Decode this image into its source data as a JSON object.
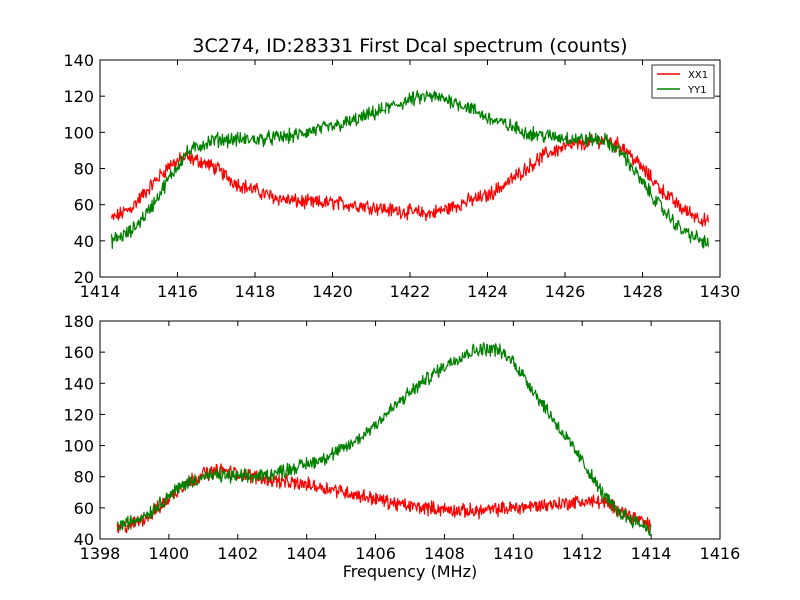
{
  "chart_data": [
    {
      "type": "line",
      "title": "3C274, ID:28331 First Dcal spectrum (counts)",
      "xlabel": "",
      "ylabel": "",
      "xlim": [
        1414,
        1430
      ],
      "ylim": [
        20,
        140
      ],
      "xticks": [
        "1414",
        "1416",
        "1418",
        "1420",
        "1422",
        "1424",
        "1426",
        "1428",
        "1430"
      ],
      "yticks": [
        "20",
        "40",
        "60",
        "80",
        "100",
        "120",
        "140"
      ],
      "legend": {
        "placement": "top-right",
        "entries": [
          "XX1",
          "YY1"
        ]
      },
      "grid": false,
      "series": [
        {
          "name": "XX1",
          "color": "#ff0000",
          "x": [
            1414.3,
            1414.8,
            1415.3,
            1415.8,
            1416.2,
            1416.6,
            1417.0,
            1417.5,
            1418.0,
            1418.5,
            1419.0,
            1419.5,
            1420.0,
            1420.5,
            1421.0,
            1421.5,
            1422.0,
            1422.5,
            1423.0,
            1423.5,
            1424.0,
            1424.5,
            1425.0,
            1425.5,
            1426.0,
            1426.5,
            1427.0,
            1427.5,
            1428.0,
            1428.5,
            1429.0,
            1429.7
          ],
          "values": [
            52,
            58,
            70,
            82,
            86,
            84,
            80,
            72,
            68,
            64,
            62,
            61,
            61,
            60,
            59,
            57,
            56,
            55,
            58,
            62,
            65,
            72,
            80,
            88,
            92,
            94,
            96,
            92,
            80,
            68,
            58,
            50
          ]
        },
        {
          "name": "YY1",
          "color": "#008000",
          "x": [
            1414.3,
            1414.8,
            1415.3,
            1415.8,
            1416.2,
            1416.6,
            1417.0,
            1417.5,
            1418.0,
            1418.5,
            1419.0,
            1419.5,
            1420.0,
            1420.5,
            1421.0,
            1421.5,
            1422.0,
            1422.5,
            1423.0,
            1423.5,
            1424.0,
            1424.5,
            1425.0,
            1425.5,
            1426.0,
            1426.5,
            1427.0,
            1427.5,
            1428.0,
            1428.5,
            1429.0,
            1429.7
          ],
          "values": [
            40,
            45,
            58,
            75,
            88,
            93,
            96,
            96,
            96,
            97,
            98,
            101,
            103,
            106,
            110,
            114,
            118,
            120,
            118,
            114,
            108,
            104,
            100,
            98,
            97,
            96,
            96,
            88,
            72,
            58,
            46,
            38
          ]
        }
      ]
    },
    {
      "type": "line",
      "title": "",
      "xlabel": "Frequency (MHz)",
      "ylabel": "",
      "xlim": [
        1398,
        1416
      ],
      "ylim": [
        40,
        180
      ],
      "xticks": [
        "1398",
        "1400",
        "1402",
        "1404",
        "1406",
        "1408",
        "1410",
        "1412",
        "1414",
        "1416"
      ],
      "yticks": [
        "40",
        "60",
        "80",
        "100",
        "120",
        "140",
        "160",
        "180"
      ],
      "grid": false,
      "series": [
        {
          "name": "XX1",
          "color": "#ff0000",
          "x": [
            1398.5,
            1399.0,
            1399.5,
            1400.0,
            1400.5,
            1401.0,
            1401.5,
            1402.0,
            1402.5,
            1403.0,
            1403.5,
            1404.0,
            1404.5,
            1405.0,
            1405.5,
            1406.0,
            1406.5,
            1407.0,
            1407.5,
            1408.0,
            1408.5,
            1409.0,
            1409.5,
            1410.0,
            1410.5,
            1411.0,
            1411.5,
            1412.0,
            1412.5,
            1413.0,
            1413.5,
            1414.0
          ],
          "values": [
            46,
            50,
            56,
            66,
            76,
            82,
            84,
            82,
            80,
            78,
            76,
            75,
            73,
            71,
            68,
            66,
            63,
            61,
            60,
            59,
            58,
            58,
            59,
            60,
            61,
            62,
            63,
            64,
            64,
            60,
            54,
            48
          ]
        },
        {
          "name": "YY1",
          "color": "#008000",
          "x": [
            1398.5,
            1399.0,
            1399.5,
            1400.0,
            1400.5,
            1401.0,
            1401.5,
            1402.0,
            1402.5,
            1403.0,
            1403.5,
            1404.0,
            1404.5,
            1405.0,
            1405.5,
            1406.0,
            1406.5,
            1407.0,
            1407.5,
            1408.0,
            1408.5,
            1409.0,
            1409.5,
            1410.0,
            1410.5,
            1411.0,
            1411.5,
            1412.0,
            1412.5,
            1413.0,
            1413.5,
            1414.0
          ],
          "values": [
            48,
            52,
            58,
            68,
            76,
            80,
            81,
            80,
            80,
            82,
            85,
            88,
            92,
            97,
            104,
            114,
            124,
            134,
            143,
            151,
            158,
            162,
            162,
            154,
            138,
            122,
            106,
            90,
            72,
            58,
            52,
            46
          ]
        }
      ]
    }
  ]
}
